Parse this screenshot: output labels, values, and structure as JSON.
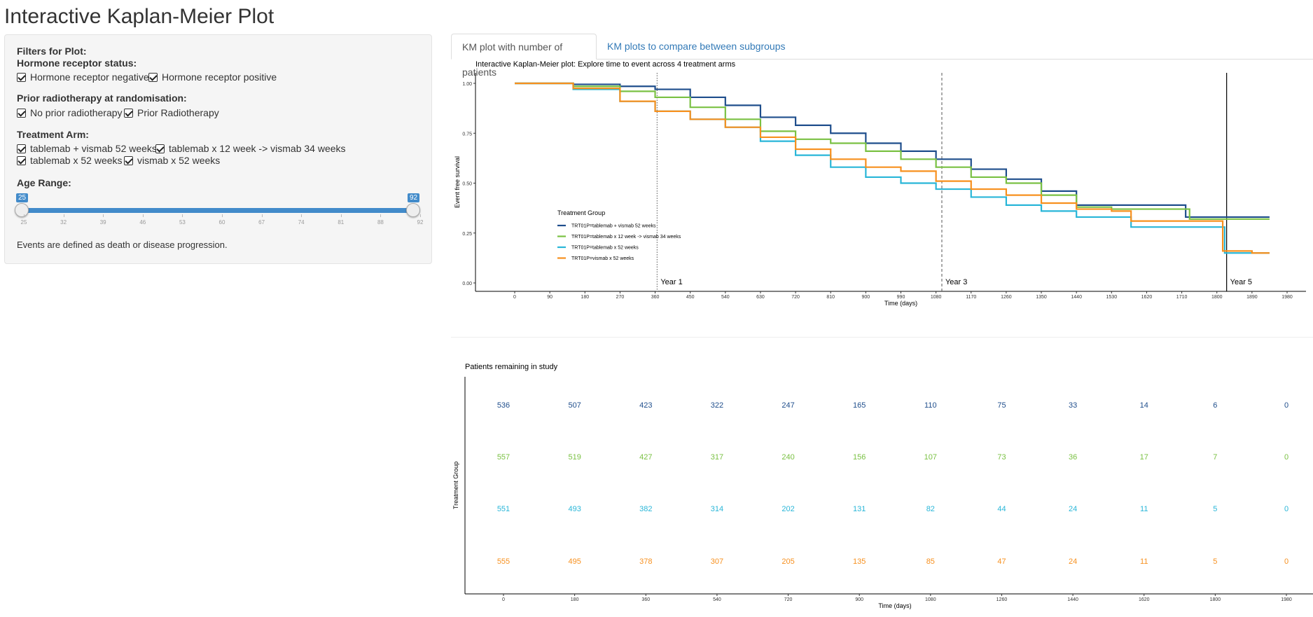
{
  "page_title": "Interactive Kaplan-Meier Plot",
  "sidebar": {
    "filters_label": "Filters for Plot:",
    "hormone_label": "Hormone receptor status:",
    "hormone_options": [
      "Hormone receptor negative",
      "Hormone receptor positive"
    ],
    "radio_label": "Prior radiotherapy at randomisation:",
    "radio_options": [
      "No prior radiotherapy",
      "Prior Radiotherapy"
    ],
    "arm_label": "Treatment Arm:",
    "arm_options": [
      "tablemab + vismab 52 weeks",
      "tablemab x 12 week -> vismab 34 weeks",
      "tablemab x 52 weeks",
      "vismab x 52 weeks"
    ],
    "age_label": "Age Range:",
    "age_min": "25",
    "age_max": "92",
    "age_ticks": [
      "25",
      "32",
      "39",
      "46",
      "53",
      "60",
      "67",
      "74",
      "81",
      "88",
      "92"
    ],
    "note": "Events are defined as death or disease progression."
  },
  "tabs": [
    "KM plot with number of patients",
    "KM plots to compare between subgroups"
  ],
  "colors": {
    "arm1": "#1f4e8c",
    "arm2": "#7ac143",
    "arm3": "#29b6d8",
    "arm4": "#f7901e"
  },
  "chart_data": [
    {
      "type": "line",
      "title": "Interactive Kaplan-Meier plot: Explore time to event across 4 treatment arms",
      "xlabel": "Time (days)",
      "ylabel": "Event free survival",
      "xlim": [
        0,
        1980
      ],
      "ylim": [
        0,
        1
      ],
      "xticks": [
        0,
        90,
        180,
        270,
        360,
        450,
        540,
        630,
        720,
        810,
        900,
        990,
        1080,
        1170,
        1260,
        1350,
        1440,
        1530,
        1620,
        1710,
        1800,
        1890,
        1980
      ],
      "yticks": [
        "0.00",
        "0.25",
        "0.50",
        "0.75",
        "1.00"
      ],
      "legend_title": "Treatment Group",
      "legend_position": "bottom-left inside",
      "reference_lines": [
        {
          "x": 365,
          "label": "Year 1",
          "style": "dotted"
        },
        {
          "x": 1095,
          "label": "Year 3",
          "style": "dashed"
        },
        {
          "x": 1825,
          "label": "Year 5",
          "style": "solid"
        }
      ],
      "series": [
        {
          "name": "TRT01P=tablemab + vismab 52 weeks",
          "color": "#1f4e8c",
          "points": [
            [
              0,
              1.0
            ],
            [
              150,
              0.995
            ],
            [
              270,
              0.985
            ],
            [
              360,
              0.97
            ],
            [
              450,
              0.93
            ],
            [
              540,
              0.89
            ],
            [
              630,
              0.83
            ],
            [
              720,
              0.79
            ],
            [
              810,
              0.75
            ],
            [
              900,
              0.7
            ],
            [
              990,
              0.66
            ],
            [
              1080,
              0.62
            ],
            [
              1170,
              0.57
            ],
            [
              1260,
              0.52
            ],
            [
              1350,
              0.46
            ],
            [
              1440,
              0.39
            ],
            [
              1530,
              0.39
            ],
            [
              1620,
              0.39
            ],
            [
              1710,
              0.39
            ],
            [
              1720,
              0.33
            ],
            [
              1800,
              0.33
            ],
            [
              1890,
              0.33
            ],
            [
              1935,
              0.33
            ]
          ]
        },
        {
          "name": "TRT01P=tablemab x 12 week -> vismab 34 weeks",
          "color": "#7ac143",
          "points": [
            [
              0,
              1.0
            ],
            [
              150,
              0.985
            ],
            [
              270,
              0.96
            ],
            [
              360,
              0.93
            ],
            [
              450,
              0.88
            ],
            [
              540,
              0.82
            ],
            [
              630,
              0.76
            ],
            [
              720,
              0.72
            ],
            [
              810,
              0.7
            ],
            [
              900,
              0.66
            ],
            [
              990,
              0.62
            ],
            [
              1080,
              0.58
            ],
            [
              1170,
              0.53
            ],
            [
              1260,
              0.5
            ],
            [
              1350,
              0.44
            ],
            [
              1440,
              0.38
            ],
            [
              1530,
              0.37
            ],
            [
              1620,
              0.37
            ],
            [
              1710,
              0.37
            ],
            [
              1730,
              0.32
            ],
            [
              1800,
              0.32
            ],
            [
              1890,
              0.32
            ],
            [
              1935,
              0.32
            ]
          ]
        },
        {
          "name": "TRT01P=tablemab x 52 weeks",
          "color": "#29b6d8",
          "points": [
            [
              0,
              1.0
            ],
            [
              150,
              0.97
            ],
            [
              270,
              0.91
            ],
            [
              360,
              0.86
            ],
            [
              450,
              0.82
            ],
            [
              540,
              0.78
            ],
            [
              630,
              0.71
            ],
            [
              720,
              0.64
            ],
            [
              810,
              0.58
            ],
            [
              900,
              0.53
            ],
            [
              990,
              0.5
            ],
            [
              1080,
              0.47
            ],
            [
              1170,
              0.43
            ],
            [
              1260,
              0.39
            ],
            [
              1350,
              0.36
            ],
            [
              1440,
              0.33
            ],
            [
              1530,
              0.33
            ],
            [
              1580,
              0.28
            ],
            [
              1620,
              0.28
            ],
            [
              1710,
              0.28
            ],
            [
              1800,
              0.28
            ],
            [
              1820,
              0.15
            ],
            [
              1890,
              0.15
            ],
            [
              1935,
              0.15
            ]
          ]
        },
        {
          "name": "TRT01P=vismab x 52 weeks",
          "color": "#f7901e",
          "points": [
            [
              0,
              1.0
            ],
            [
              150,
              0.975
            ],
            [
              270,
              0.91
            ],
            [
              360,
              0.86
            ],
            [
              450,
              0.82
            ],
            [
              540,
              0.78
            ],
            [
              630,
              0.73
            ],
            [
              720,
              0.67
            ],
            [
              810,
              0.62
            ],
            [
              900,
              0.58
            ],
            [
              990,
              0.56
            ],
            [
              1080,
              0.51
            ],
            [
              1170,
              0.47
            ],
            [
              1260,
              0.44
            ],
            [
              1350,
              0.4
            ],
            [
              1440,
              0.37
            ],
            [
              1530,
              0.36
            ],
            [
              1580,
              0.31
            ],
            [
              1620,
              0.31
            ],
            [
              1710,
              0.31
            ],
            [
              1800,
              0.31
            ],
            [
              1815,
              0.16
            ],
            [
              1890,
              0.15
            ],
            [
              1935,
              0.15
            ]
          ]
        }
      ]
    },
    {
      "type": "table",
      "title": "Patients remaining in study",
      "xlabel": "Time (days)",
      "ylabel": "Treatment Group",
      "xticks": [
        0,
        180,
        360,
        540,
        720,
        900,
        1080,
        1260,
        1440,
        1620,
        1800,
        1980
      ],
      "rows": [
        {
          "color": "#1f4e8c",
          "values": [
            536,
            507,
            423,
            322,
            247,
            165,
            110,
            75,
            33,
            14,
            6,
            0
          ]
        },
        {
          "color": "#7ac143",
          "values": [
            557,
            519,
            427,
            317,
            240,
            156,
            107,
            73,
            36,
            17,
            7,
            0
          ]
        },
        {
          "color": "#29b6d8",
          "values": [
            551,
            493,
            382,
            314,
            202,
            131,
            82,
            44,
            24,
            11,
            5,
            0
          ]
        },
        {
          "color": "#f7901e",
          "values": [
            555,
            495,
            378,
            307,
            205,
            135,
            85,
            47,
            24,
            11,
            5,
            0
          ]
        }
      ]
    }
  ]
}
